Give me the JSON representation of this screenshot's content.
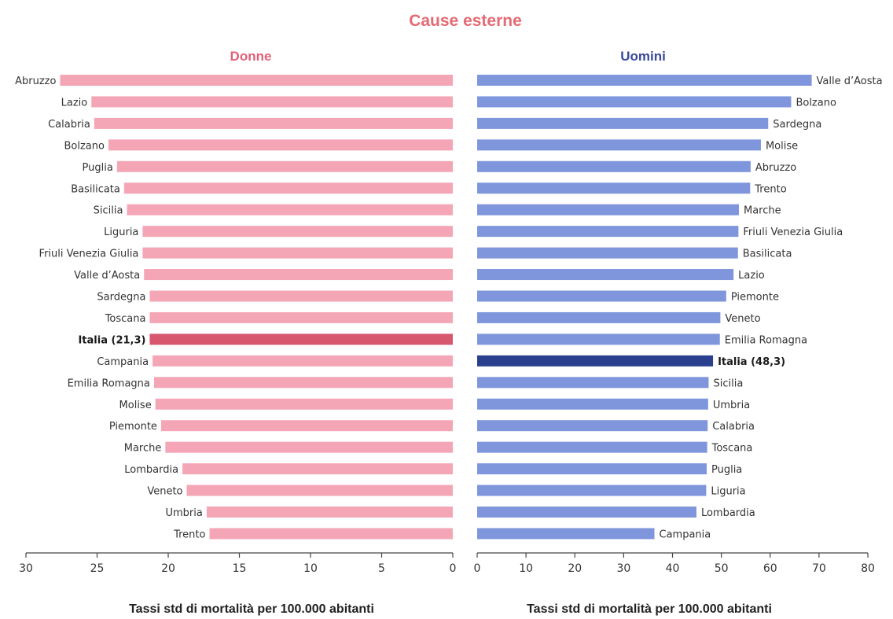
{
  "colors": {
    "title": "#e46a73",
    "donne_title": "#e2607a",
    "uomini_title": "#3a4a9c",
    "donne_bar": "#f4a6b6",
    "donne_highlight": "#d6576e",
    "uomini_bar": "#7f96dd",
    "uomini_highlight": "#2a3f8e",
    "axis": "#444444"
  },
  "chart_data": {
    "title": "Cause esterne",
    "type": "bar",
    "panels": [
      {
        "name": "Donne",
        "orientation": "horizontal",
        "direction": "reversed",
        "xlim": [
          30,
          0
        ],
        "ticks": [
          30,
          25,
          20,
          15,
          10,
          5,
          0
        ],
        "xlabel": "Tassi std di mortalità per 100.000 abitanti",
        "highlight": "Italia (21,3)",
        "categories": [
          "Abruzzo",
          "Lazio",
          "Calabria",
          "Bolzano",
          "Puglia",
          "Basilicata",
          "Sicilia",
          "Liguria",
          "Friuli Venezia Giulia",
          "Valle d’Aosta",
          "Sardegna",
          "Toscana",
          "Italia (21,3)",
          "Campania",
          "Emilia Romagna",
          "Molise",
          "Piemonte",
          "Marche",
          "Lombardia",
          "Veneto",
          "Umbria",
          "Trento"
        ],
        "values": [
          27.6,
          25.4,
          25.2,
          24.2,
          23.6,
          23.1,
          22.9,
          21.8,
          21.8,
          21.7,
          21.3,
          21.3,
          21.3,
          21.1,
          21.0,
          20.9,
          20.5,
          20.2,
          19.0,
          18.7,
          17.3,
          17.1
        ]
      },
      {
        "name": "Uomini",
        "orientation": "horizontal",
        "direction": "normal",
        "xlim": [
          0,
          80
        ],
        "ticks": [
          0,
          10,
          20,
          30,
          40,
          50,
          60,
          70,
          80
        ],
        "xlabel": "Tassi std di mortalità per 100.000 abitanti",
        "highlight": "Italia (48,3)",
        "categories": [
          "Valle d’Aosta",
          "Bolzano",
          "Sardegna",
          "Molise",
          "Abruzzo",
          "Trento",
          "Marche",
          "Friuli Venezia Giulia",
          "Basilicata",
          "Lazio",
          "Piemonte",
          "Veneto",
          "Emilia Romagna",
          "Italia (48,3)",
          "Sicilia",
          "Umbria",
          "Calabria",
          "Toscana",
          "Puglia",
          "Liguria",
          "Lombardia",
          "Campania"
        ],
        "values": [
          68.5,
          64.3,
          59.6,
          58.1,
          56.0,
          55.9,
          53.6,
          53.5,
          53.4,
          52.5,
          51.0,
          49.8,
          49.7,
          48.3,
          47.4,
          47.3,
          47.2,
          47.1,
          47.0,
          46.9,
          44.9,
          36.3
        ]
      }
    ]
  }
}
